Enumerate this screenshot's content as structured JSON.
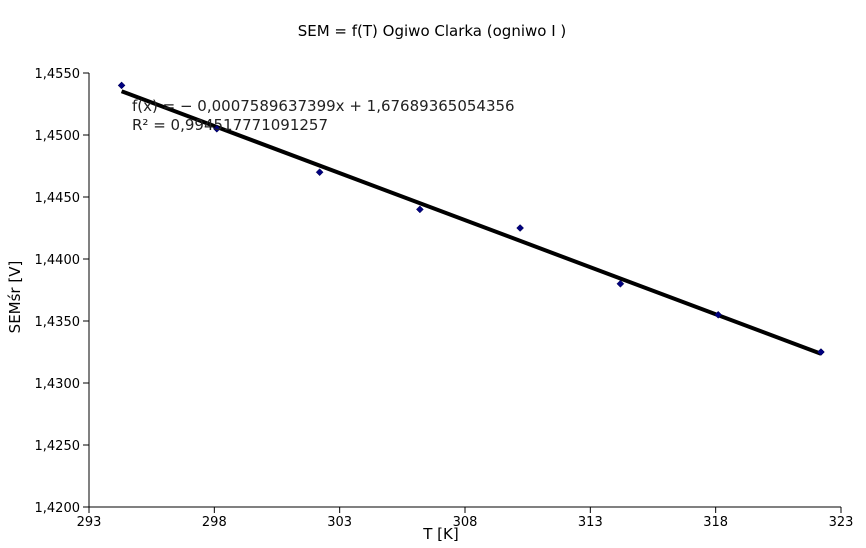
{
  "chart_data": {
    "type": "scatter",
    "title": "SEM = f(T) Ogiwo Clarka (ogniwo I )",
    "xlabel": "T [K]",
    "ylabel": "SEMśr [V]",
    "xlim": [
      293,
      323
    ],
    "ylim": [
      1.42,
      1.455
    ],
    "x_ticks": [
      293,
      298,
      303,
      308,
      313,
      318,
      323
    ],
    "x_tick_labels": [
      "293",
      "298",
      "303",
      "308",
      "313",
      "318",
      "323"
    ],
    "y_ticks": [
      1.42,
      1.425,
      1.43,
      1.435,
      1.44,
      1.445,
      1.45,
      1.455
    ],
    "y_tick_labels": [
      "1,4200",
      "1,4250",
      "1,4300",
      "1,4350",
      "1,4400",
      "1,4450",
      "1,4500",
      "1,4550"
    ],
    "grid": false,
    "series": [
      {
        "color": "#000080",
        "points": [
          {
            "x": 294.3,
            "y": 1.454
          },
          {
            "x": 298.1,
            "y": 1.4505
          },
          {
            "x": 302.2,
            "y": 1.447
          },
          {
            "x": 306.2,
            "y": 1.444
          },
          {
            "x": 310.2,
            "y": 1.4425
          },
          {
            "x": 314.2,
            "y": 1.438
          },
          {
            "x": 318.1,
            "y": 1.4355
          },
          {
            "x": 322.2,
            "y": 1.4325
          }
        ]
      }
    ],
    "trendline": {
      "type": "linear",
      "slope": -0.0007589637399,
      "intercept": 1.67689365054356,
      "x_range": [
        294.3,
        322.2
      ],
      "color": "#000000"
    },
    "annotations": {
      "equation": "f(x) = − 0,0007589637399x + 1,67689365054356",
      "r_squared": "R² = 0,994517771091257"
    }
  }
}
